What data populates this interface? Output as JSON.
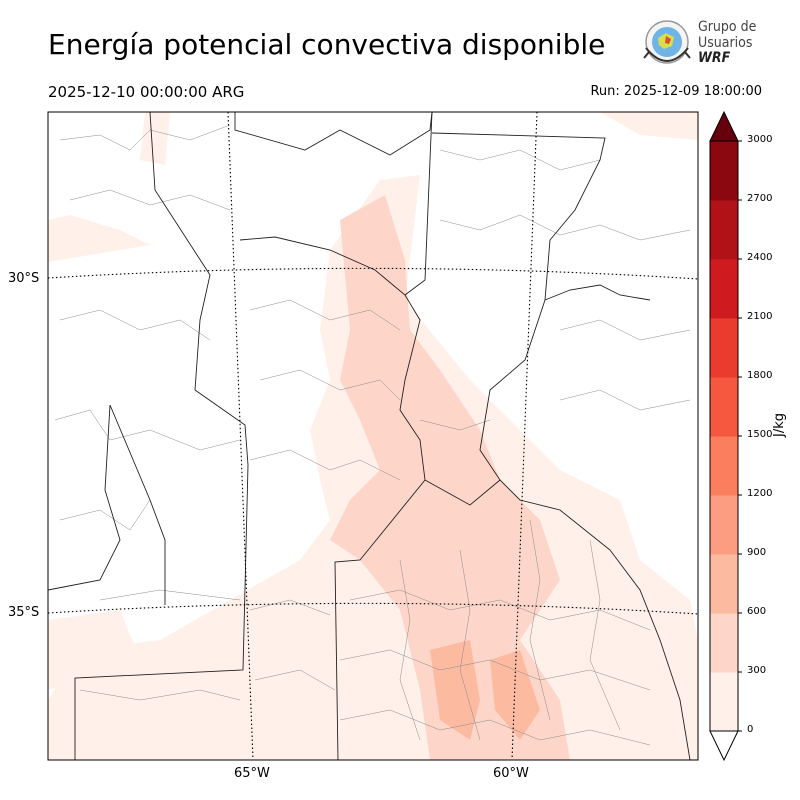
{
  "header": {
    "title": "Energía potencial convectiva disponible",
    "valid_time": "2025-12-10 00:00:00 ARG",
    "run_time": "Run: 2025-12-09 18:00:00"
  },
  "logo": {
    "line1": "Grupo de",
    "line2": "Usuarios",
    "line3": "WRF"
  },
  "map": {
    "lat_labels": [
      "30°S",
      "35°S"
    ],
    "lon_labels": [
      "65°W",
      "60°W"
    ]
  },
  "colorbar": {
    "unit": "J/kg",
    "ticks": [
      "0",
      "300",
      "600",
      "900",
      "1200",
      "1500",
      "1800",
      "2100",
      "2400",
      "2700",
      "3000"
    ],
    "colors": [
      "#fff0ea",
      "#fdd6c9",
      "#fcbba1",
      "#fc9d81",
      "#fb7e5e",
      "#f5573f",
      "#ea3b2f",
      "#cf1b20",
      "#b11217",
      "#8b0810",
      "#67000d"
    ]
  }
}
